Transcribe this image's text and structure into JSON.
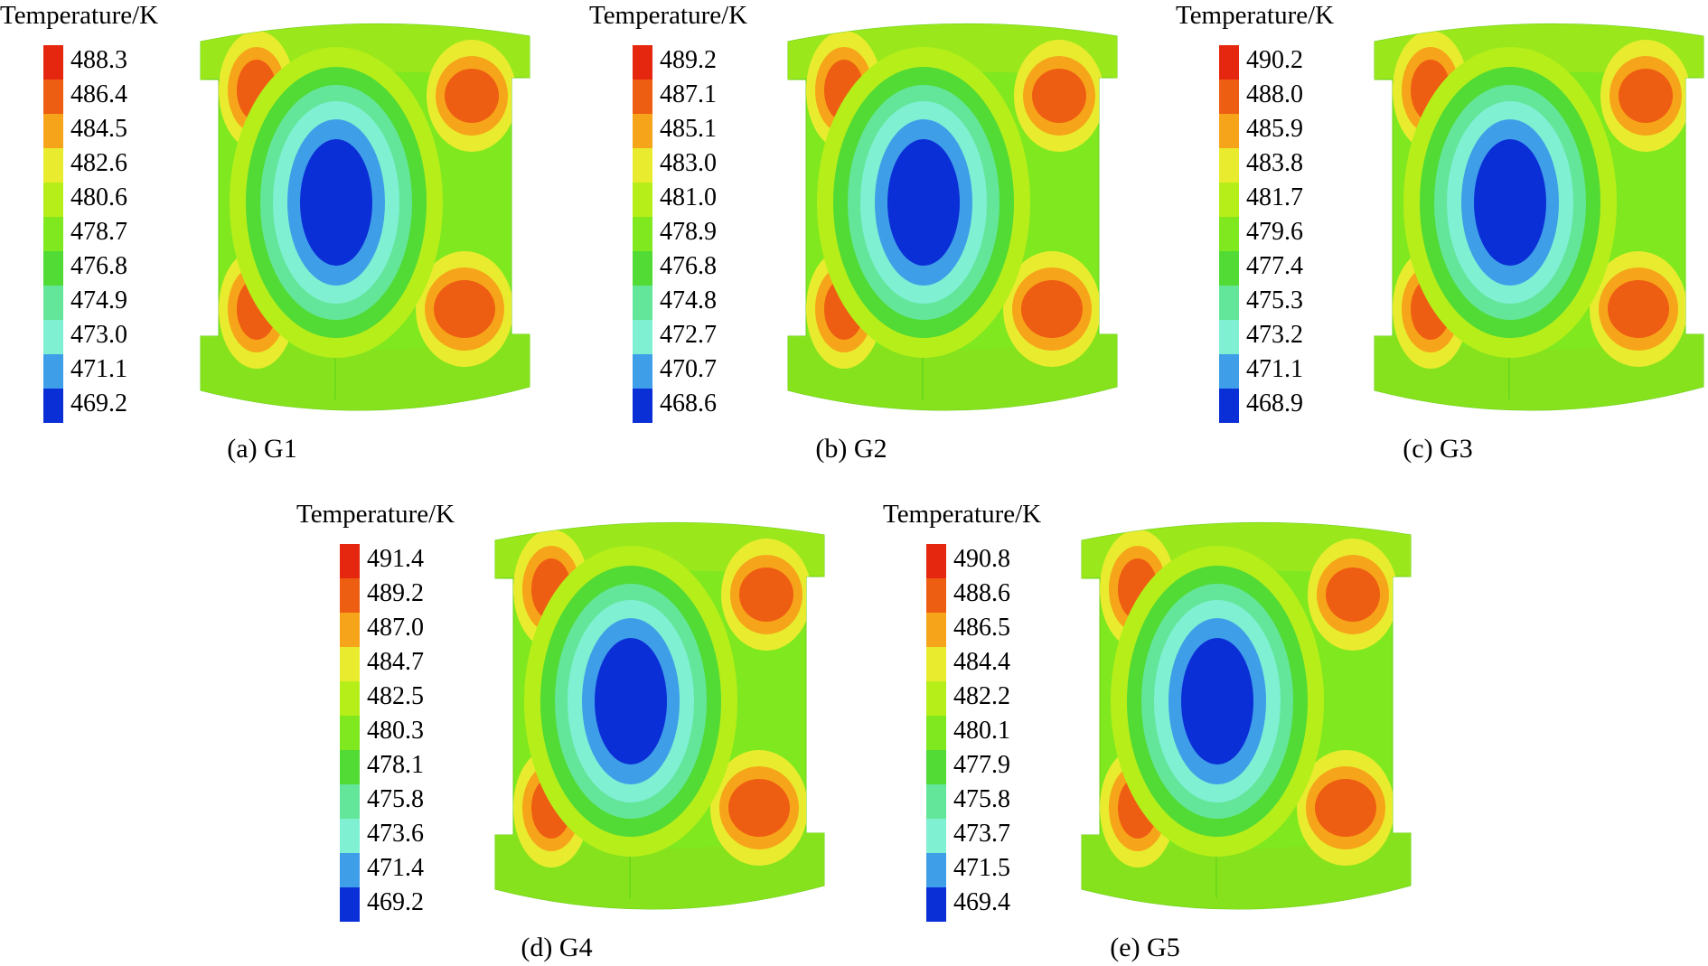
{
  "legend_title": "Temperature/K",
  "level_colors": [
    "#0a2fd6",
    "#3f9ee8",
    "#7ff0d2",
    "#63e69a",
    "#52da35",
    "#7fe81f",
    "#b6ee1a",
    "#e9ec2e",
    "#f6a51a",
    "#ee5e12",
    "#e4270e"
  ],
  "panels": [
    {
      "caption": "(a) G1",
      "levels": [
        "488.3",
        "486.4",
        "484.5",
        "482.6",
        "480.6",
        "478.7",
        "476.8",
        "474.9",
        "473.0",
        "471.1",
        "469.2"
      ]
    },
    {
      "caption": "(b) G2",
      "levels": [
        "489.2",
        "487.1",
        "485.1",
        "483.0",
        "481.0",
        "478.9",
        "476.8",
        "474.8",
        "472.7",
        "470.7",
        "468.6"
      ]
    },
    {
      "caption": "(c) G3",
      "levels": [
        "490.2",
        "488.0",
        "485.9",
        "483.8",
        "481.7",
        "479.6",
        "477.4",
        "475.3",
        "473.2",
        "471.1",
        "468.9"
      ]
    },
    {
      "caption": "(d) G4",
      "levels": [
        "491.4",
        "489.2",
        "487.0",
        "484.7",
        "482.5",
        "480.3",
        "478.1",
        "475.8",
        "473.6",
        "471.4",
        "469.2"
      ]
    },
    {
      "caption": "(e) G5",
      "levels": [
        "490.8",
        "488.6",
        "486.5",
        "484.4",
        "482.2",
        "480.1",
        "477.9",
        "475.8",
        "473.7",
        "471.5",
        "469.4"
      ]
    }
  ]
}
